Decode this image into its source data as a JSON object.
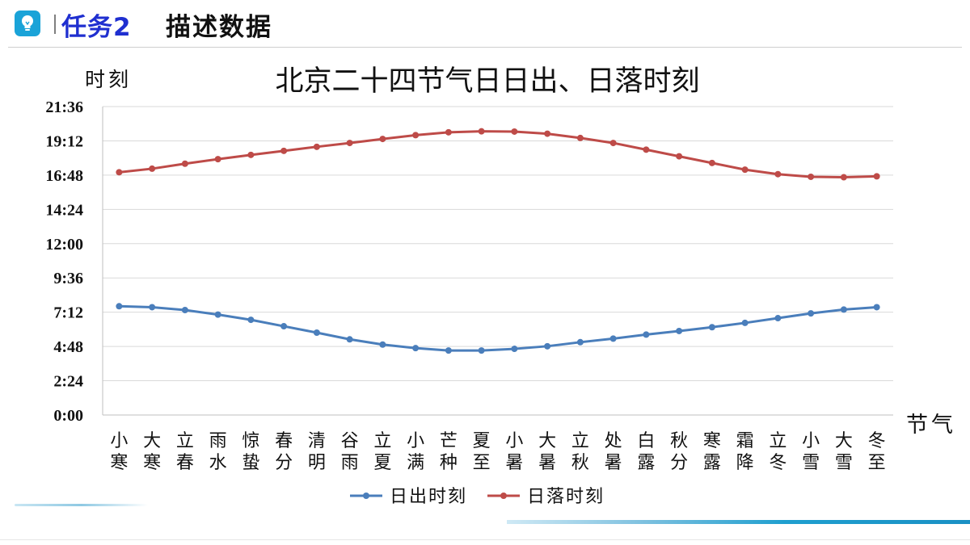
{
  "header": {
    "task_label": "任务2",
    "subtitle": "描述数据",
    "icon": "lightbulb-icon",
    "icon_color": "#1aa3d8",
    "task_color": "#1f2fd0"
  },
  "chart_data": {
    "type": "line",
    "title": "北京二十四节气日日出、日落时刻",
    "ylabel": "时刻",
    "xlabel": "节气",
    "ylim": [
      "0:00",
      "21:36"
    ],
    "yticks": [
      "0:00",
      "2:24",
      "4:48",
      "7:12",
      "9:36",
      "12:00",
      "14:24",
      "16:48",
      "19:12",
      "21:36"
    ],
    "grid": true,
    "legend_position": "bottom",
    "categories": [
      "小寒",
      "大寒",
      "立春",
      "雨水",
      "惊蛰",
      "春分",
      "清明",
      "谷雨",
      "立夏",
      "小满",
      "芒种",
      "夏至",
      "小暑",
      "大暑",
      "立秋",
      "处暑",
      "白露",
      "秋分",
      "寒露",
      "霜降",
      "立冬",
      "小雪",
      "大雪",
      "冬至"
    ],
    "series": [
      {
        "name": "日出时刻",
        "color": "#4a7ebb",
        "values": [
          "7:37",
          "7:33",
          "7:21",
          "7:02",
          "6:40",
          "6:13",
          "5:46",
          "5:18",
          "4:56",
          "4:41",
          "4:31",
          "4:31",
          "4:38",
          "4:49",
          "5:06",
          "5:21",
          "5:38",
          "5:53",
          "6:09",
          "6:27",
          "6:47",
          "7:07",
          "7:23",
          "7:33"
        ]
      },
      {
        "name": "日落时刻",
        "color": "#be4b48",
        "values": [
          "17:00",
          "17:15",
          "17:36",
          "17:55",
          "18:13",
          "18:30",
          "18:47",
          "19:03",
          "19:20",
          "19:36",
          "19:48",
          "19:52",
          "19:51",
          "19:42",
          "19:24",
          "19:03",
          "18:35",
          "18:07",
          "17:39",
          "17:11",
          "16:52",
          "16:41",
          "16:39",
          "16:43"
        ]
      }
    ]
  }
}
